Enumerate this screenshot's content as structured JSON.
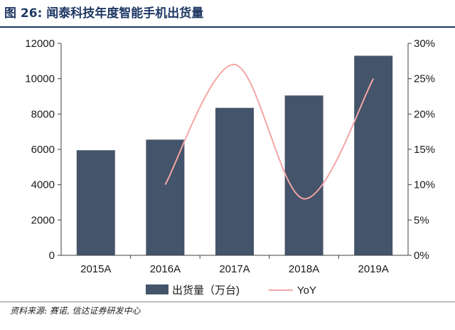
{
  "figure": {
    "title": "图 26:  闻泰科技年度智能手机出货量",
    "source": "资料来源: 赛诺, 信达证券研发中心"
  },
  "colors": {
    "title": "#1f3864",
    "bar": "#44546a",
    "line": "#f4a6a6",
    "axis": "#404040"
  },
  "chart_data": {
    "type": "bar",
    "categories": [
      "2015A",
      "2016A",
      "2017A",
      "2018A",
      "2019A"
    ],
    "series": [
      {
        "name": "出货量（万台)",
        "type": "bar",
        "axis": "left",
        "values": [
          5950,
          6550,
          8350,
          9050,
          11300
        ]
      },
      {
        "name": "YoY",
        "type": "line",
        "axis": "right",
        "smooth": true,
        "values": [
          null,
          10,
          27,
          8,
          25
        ]
      }
    ],
    "y_left": {
      "ylim": [
        0,
        12000
      ],
      "ticks": [
        "0",
        "2000",
        "4000",
        "6000",
        "8000",
        "10000",
        "12000"
      ]
    },
    "y_right": {
      "ylim": [
        0,
        30
      ],
      "ticks": [
        "0%",
        "5%",
        "10%",
        "15%",
        "20%",
        "25%",
        "30%"
      ]
    },
    "grid": false,
    "legend": "bottom"
  }
}
